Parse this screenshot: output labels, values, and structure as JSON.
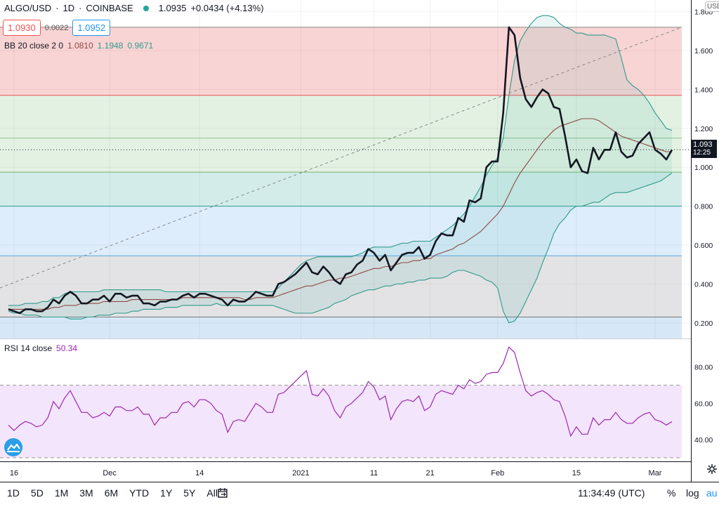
{
  "header": {
    "symbol": "ALGO/USD",
    "interval": "1D",
    "exchange": "COINBASE",
    "price": "1.0935",
    "change": "+0.0434 (+4.13%)",
    "bid": "1.0930",
    "spread": "0.0022",
    "ask": "1.0952"
  },
  "bb_legend": {
    "label": "BB 20 close 2 0",
    "basis": "1.0810",
    "upper": "1.1948",
    "lower": "0.9671"
  },
  "rsi_legend": {
    "label": "RSI 14 close",
    "value": "50.34"
  },
  "price_axis": {
    "top_partial": "USD",
    "last_price": "1.093",
    "countdown": "12:25"
  },
  "bottom_bar": {
    "ranges": [
      "1D",
      "5D",
      "1M",
      "3M",
      "6M",
      "YTD",
      "1Y",
      "5Y",
      "All"
    ],
    "time": "11:34:49 (UTC)",
    "percent": "%",
    "log": "log",
    "auto": "au"
  },
  "colors": {
    "price_line": "#131722",
    "bb_basis": "#8d4a45",
    "bb_band": "#2e9a8c",
    "rsi_line": "#9c27b0",
    "up_green": "#26a69a",
    "down_red": "#ef5350",
    "ask_blue": "#2196f3"
  },
  "chart_data": [
    {
      "type": "line",
      "series": [
        {
          "name": "ALGO/USD",
          "values": [
            0.27,
            0.26,
            0.25,
            0.27,
            0.27,
            0.26,
            0.26,
            0.28,
            0.32,
            0.3,
            0.34,
            0.36,
            0.34,
            0.3,
            0.3,
            0.32,
            0.32,
            0.34,
            0.31,
            0.35,
            0.35,
            0.33,
            0.34,
            0.34,
            0.3,
            0.3,
            0.29,
            0.31,
            0.31,
            0.32,
            0.32,
            0.34,
            0.35,
            0.33,
            0.35,
            0.35,
            0.34,
            0.33,
            0.32,
            0.29,
            0.32,
            0.31,
            0.31,
            0.33,
            0.36,
            0.35,
            0.34,
            0.34,
            0.4,
            0.41,
            0.43,
            0.45,
            0.48,
            0.51,
            0.46,
            0.45,
            0.49,
            0.46,
            0.42,
            0.4,
            0.45,
            0.46,
            0.5,
            0.52,
            0.58,
            0.56,
            0.52,
            0.55,
            0.47,
            0.51,
            0.55,
            0.56,
            0.56,
            0.59,
            0.53,
            0.55,
            0.62,
            0.66,
            0.65,
            0.65,
            0.74,
            0.72,
            0.83,
            0.82,
            0.84,
            1.0,
            1.03,
            1.03,
            1.28,
            1.72,
            1.68,
            1.46,
            1.35,
            1.31,
            1.36,
            1.4,
            1.38,
            1.31,
            1.3,
            1.16,
            1.0,
            1.04,
            0.98,
            0.97,
            1.1,
            1.04,
            1.09,
            1.09,
            1.18,
            1.08,
            1.05,
            1.06,
            1.12,
            1.15,
            1.18,
            1.09,
            1.07,
            1.04,
            1.09
          ]
        },
        {
          "name": "BB basis",
          "values": [
            0.27,
            0.27,
            0.27,
            0.27,
            0.27,
            0.27,
            0.27,
            0.27,
            0.28,
            0.28,
            0.29,
            0.29,
            0.29,
            0.3,
            0.3,
            0.3,
            0.3,
            0.31,
            0.31,
            0.31,
            0.31,
            0.31,
            0.32,
            0.32,
            0.32,
            0.32,
            0.32,
            0.32,
            0.32,
            0.32,
            0.32,
            0.33,
            0.33,
            0.33,
            0.33,
            0.33,
            0.33,
            0.33,
            0.33,
            0.33,
            0.33,
            0.33,
            0.32,
            0.32,
            0.33,
            0.33,
            0.33,
            0.33,
            0.34,
            0.35,
            0.36,
            0.37,
            0.38,
            0.39,
            0.39,
            0.4,
            0.41,
            0.42,
            0.42,
            0.43,
            0.43,
            0.44,
            0.45,
            0.46,
            0.47,
            0.48,
            0.48,
            0.49,
            0.49,
            0.5,
            0.51,
            0.51,
            0.52,
            0.52,
            0.53,
            0.53,
            0.55,
            0.56,
            0.57,
            0.58,
            0.6,
            0.61,
            0.63,
            0.65,
            0.67,
            0.7,
            0.73,
            0.76,
            0.8,
            0.86,
            0.92,
            0.97,
            1.01,
            1.05,
            1.09,
            1.13,
            1.16,
            1.19,
            1.21,
            1.22,
            1.23,
            1.24,
            1.25,
            1.25,
            1.25,
            1.24,
            1.22,
            1.2,
            1.18,
            1.16,
            1.15,
            1.14,
            1.13,
            1.12,
            1.11,
            1.1,
            1.09,
            1.08,
            1.08
          ]
        },
        {
          "name": "BB upper",
          "values": [
            0.29,
            0.29,
            0.29,
            0.3,
            0.3,
            0.3,
            0.31,
            0.31,
            0.33,
            0.33,
            0.35,
            0.36,
            0.36,
            0.36,
            0.36,
            0.36,
            0.36,
            0.37,
            0.37,
            0.37,
            0.37,
            0.37,
            0.37,
            0.37,
            0.37,
            0.37,
            0.37,
            0.37,
            0.36,
            0.36,
            0.36,
            0.36,
            0.36,
            0.36,
            0.36,
            0.36,
            0.36,
            0.36,
            0.36,
            0.36,
            0.36,
            0.36,
            0.36,
            0.36,
            0.36,
            0.36,
            0.36,
            0.36,
            0.38,
            0.41,
            0.44,
            0.47,
            0.5,
            0.52,
            0.53,
            0.54,
            0.54,
            0.54,
            0.54,
            0.54,
            0.54,
            0.54,
            0.55,
            0.56,
            0.58,
            0.59,
            0.59,
            0.59,
            0.59,
            0.6,
            0.61,
            0.61,
            0.62,
            0.62,
            0.62,
            0.62,
            0.64,
            0.66,
            0.68,
            0.7,
            0.73,
            0.76,
            0.8,
            0.85,
            0.9,
            0.96,
            1.01,
            1.05,
            1.15,
            1.37,
            1.55,
            1.65,
            1.7,
            1.74,
            1.77,
            1.78,
            1.78,
            1.77,
            1.74,
            1.72,
            1.71,
            1.69,
            1.69,
            1.68,
            1.68,
            1.68,
            1.68,
            1.67,
            1.66,
            1.56,
            1.45,
            1.42,
            1.4,
            1.37,
            1.33,
            1.28,
            1.24,
            1.2,
            1.19
          ]
        },
        {
          "name": "BB lower",
          "values": [
            0.26,
            0.25,
            0.25,
            0.24,
            0.24,
            0.24,
            0.23,
            0.23,
            0.23,
            0.23,
            0.23,
            0.22,
            0.22,
            0.22,
            0.23,
            0.23,
            0.24,
            0.24,
            0.24,
            0.25,
            0.25,
            0.25,
            0.26,
            0.26,
            0.27,
            0.27,
            0.27,
            0.27,
            0.28,
            0.28,
            0.28,
            0.29,
            0.29,
            0.29,
            0.29,
            0.29,
            0.29,
            0.3,
            0.29,
            0.29,
            0.29,
            0.29,
            0.29,
            0.29,
            0.29,
            0.29,
            0.29,
            0.29,
            0.28,
            0.27,
            0.26,
            0.25,
            0.25,
            0.25,
            0.25,
            0.26,
            0.27,
            0.28,
            0.3,
            0.31,
            0.32,
            0.34,
            0.35,
            0.36,
            0.37,
            0.37,
            0.38,
            0.39,
            0.39,
            0.4,
            0.4,
            0.41,
            0.41,
            0.42,
            0.42,
            0.43,
            0.43,
            0.43,
            0.44,
            0.46,
            0.47,
            0.47,
            0.46,
            0.45,
            0.44,
            0.42,
            0.41,
            0.38,
            0.26,
            0.2,
            0.21,
            0.25,
            0.31,
            0.37,
            0.43,
            0.51,
            0.58,
            0.66,
            0.71,
            0.74,
            0.78,
            0.8,
            0.8,
            0.81,
            0.82,
            0.82,
            0.84,
            0.86,
            0.87,
            0.87,
            0.87,
            0.88,
            0.89,
            0.9,
            0.91,
            0.92,
            0.93,
            0.95,
            0.97
          ]
        }
      ],
      "ylim": [
        0.12,
        1.86
      ],
      "y_ticks": [
        "0.200",
        "0.400",
        "0.600",
        "0.800",
        "1.000",
        "1.200",
        "1.400",
        "1.600",
        "1.800"
      ],
      "x_ticks": [
        "16",
        "Dec",
        "14",
        "2021",
        "11",
        "21",
        "Feb",
        "15",
        "Mar",
        "15"
      ],
      "fib_levels": [
        1.72,
        1.37,
        1.15,
        0.975,
        0.8,
        0.545,
        0.23
      ],
      "trend_line": {
        "from": [
          0,
          0.38
        ],
        "to": [
          118,
          1.72
        ]
      },
      "grid": true
    },
    {
      "type": "line",
      "series": [
        {
          "name": "RSI",
          "values": [
            48,
            45,
            48,
            50,
            49,
            47,
            48,
            52,
            61,
            57,
            63,
            67,
            61,
            55,
            55,
            52,
            53,
            55,
            53,
            58,
            58,
            56,
            56,
            58,
            54,
            54,
            48,
            52,
            52,
            55,
            55,
            60,
            61,
            58,
            62,
            62,
            60,
            56,
            54,
            44,
            50,
            51,
            50,
            55,
            60,
            58,
            55,
            55,
            65,
            66,
            69,
            72,
            75,
            78,
            65,
            64,
            68,
            64,
            56,
            52,
            58,
            60,
            63,
            66,
            72,
            69,
            62,
            64,
            51,
            57,
            61,
            62,
            61,
            64,
            56,
            58,
            65,
            67,
            66,
            65,
            70,
            68,
            73,
            71,
            72,
            76,
            77,
            77,
            82,
            91,
            88,
            77,
            67,
            64,
            66,
            67,
            65,
            62,
            61,
            53,
            42,
            47,
            43,
            43,
            52,
            48,
            51,
            51,
            55,
            51,
            49,
            49,
            52,
            54,
            55,
            51,
            50,
            48,
            50
          ]
        }
      ],
      "ylim": [
        28,
        95
      ],
      "y_ticks": [
        "40.00",
        "60.00",
        "80.00"
      ],
      "bands": [
        30,
        70
      ]
    }
  ]
}
